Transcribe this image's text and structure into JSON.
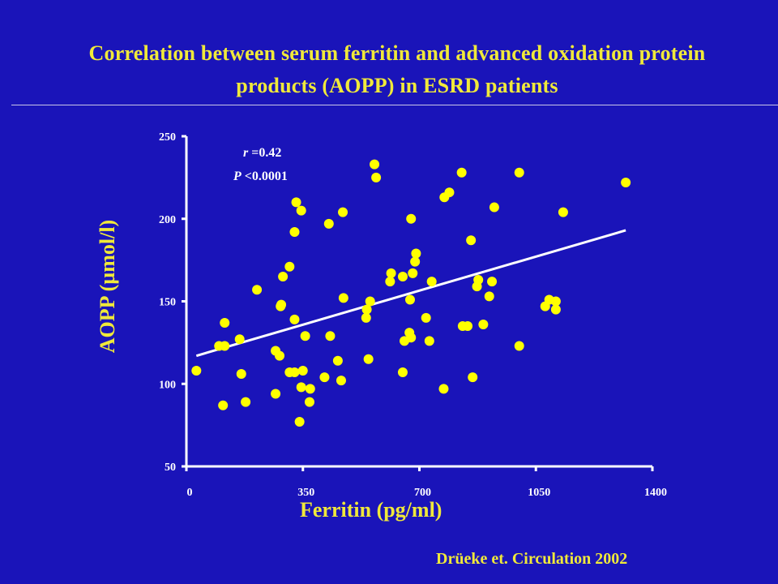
{
  "title": {
    "line1": "Correlation between serum ferritin and advanced oxidation protein",
    "line2": "products (AOPP) in ESRD patients"
  },
  "citation": "Drüeke et. Circulation 2002",
  "stats": {
    "r_symbol": "r",
    "r_value": " =0.42",
    "p_symbol": "P",
    "p_value": " <0.0001"
  },
  "colors": {
    "background": "#1a14b9",
    "accent_text": "#f0e93a",
    "points": "#ffff00",
    "axes": "#ffffff",
    "regression_line": "#ffffff"
  },
  "chart_data": {
    "type": "scatter",
    "xlabel": "Ferritin (pg/ml)",
    "ylabel": "AOPP (µmol/l)",
    "xlim": [
      0,
      1400
    ],
    "ylim": [
      50,
      250
    ],
    "xticks": [
      0,
      350,
      700,
      1050,
      1400
    ],
    "yticks": [
      50,
      100,
      150,
      200,
      250
    ],
    "regression": {
      "x": [
        30,
        1320
      ],
      "y": [
        117,
        193
      ]
    },
    "points": [
      [
        30,
        108
      ],
      [
        98,
        123
      ],
      [
        115,
        123
      ],
      [
        115,
        137
      ],
      [
        110,
        87
      ],
      [
        160,
        127
      ],
      [
        165,
        106
      ],
      [
        178,
        89
      ],
      [
        212,
        157
      ],
      [
        268,
        120
      ],
      [
        268,
        94
      ],
      [
        280,
        117
      ],
      [
        283,
        147
      ],
      [
        285,
        148
      ],
      [
        290,
        165
      ],
      [
        310,
        171
      ],
      [
        310,
        107
      ],
      [
        325,
        107
      ],
      [
        325,
        192
      ],
      [
        325,
        139
      ],
      [
        330,
        210
      ],
      [
        345,
        205
      ],
      [
        340,
        77
      ],
      [
        345,
        98
      ],
      [
        350,
        108
      ],
      [
        357,
        129
      ],
      [
        370,
        89
      ],
      [
        372,
        97
      ],
      [
        415,
        104
      ],
      [
        428,
        197
      ],
      [
        432,
        129
      ],
      [
        455,
        114
      ],
      [
        465,
        102
      ],
      [
        470,
        204
      ],
      [
        472,
        152
      ],
      [
        540,
        140
      ],
      [
        542,
        145
      ],
      [
        547,
        115
      ],
      [
        552,
        150
      ],
      [
        565,
        233
      ],
      [
        570,
        225
      ],
      [
        612,
        162
      ],
      [
        615,
        167
      ],
      [
        650,
        165
      ],
      [
        650,
        107
      ],
      [
        655,
        126
      ],
      [
        670,
        131
      ],
      [
        672,
        151
      ],
      [
        675,
        128
      ],
      [
        675,
        200
      ],
      [
        680,
        167
      ],
      [
        687,
        174
      ],
      [
        690,
        179
      ],
      [
        720,
        140
      ],
      [
        730,
        126
      ],
      [
        737,
        162
      ],
      [
        773,
        97
      ],
      [
        775,
        213
      ],
      [
        790,
        216
      ],
      [
        830,
        135
      ],
      [
        827,
        228
      ],
      [
        845,
        135
      ],
      [
        855,
        187
      ],
      [
        860,
        104
      ],
      [
        873,
        159
      ],
      [
        877,
        163
      ],
      [
        892,
        136
      ],
      [
        910,
        153
      ],
      [
        918,
        162
      ],
      [
        925,
        207
      ],
      [
        1000,
        228
      ],
      [
        1000,
        123
      ],
      [
        1078,
        147
      ],
      [
        1090,
        151
      ],
      [
        1110,
        145
      ],
      [
        1110,
        150
      ],
      [
        1132,
        204
      ],
      [
        1320,
        222
      ]
    ]
  }
}
